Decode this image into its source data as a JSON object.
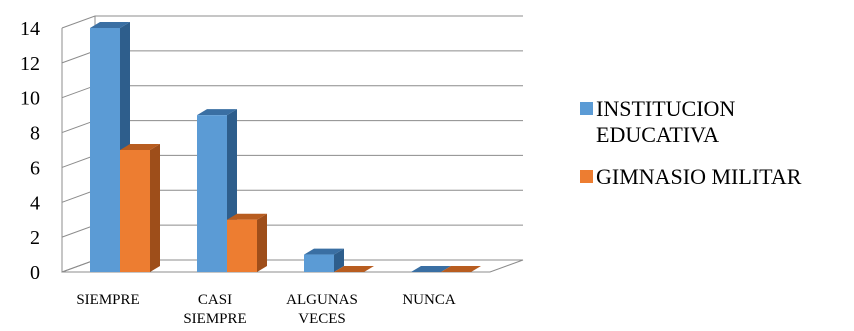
{
  "chart_data": {
    "type": "bar",
    "categories": [
      "SIEMPRE",
      "CASI SIEMPRE",
      "ALGUNAS VECES",
      "NUNCA"
    ],
    "category_lines": [
      [
        "SIEMPRE"
      ],
      [
        "CASI",
        "SIEMPRE"
      ],
      [
        "ALGUNAS",
        "VECES"
      ],
      [
        "NUNCA"
      ]
    ],
    "series": [
      {
        "name": "INSTITUCION EDUCATIVA",
        "name_lines": "INSTITUCION\nEDUCATIVA",
        "values": [
          14,
          9,
          1,
          0
        ],
        "color": "#5B9BD5",
        "side_color": "#2E5E8C",
        "top_color": "#3A6FA3"
      },
      {
        "name": "GIMNASIO MILITAR",
        "name_lines": "GIMNASIO MILITAR",
        "values": [
          7,
          3,
          0,
          0
        ],
        "color": "#ED7D31",
        "side_color": "#9E4E1A",
        "top_color": "#B85D20"
      }
    ],
    "y_ticks": [
      0,
      2,
      4,
      6,
      8,
      10,
      12,
      14
    ],
    "ylim": [
      0,
      14
    ],
    "grid": true,
    "legend_position": "right",
    "three_d": true,
    "title": "",
    "xlabel": "",
    "ylabel": ""
  }
}
